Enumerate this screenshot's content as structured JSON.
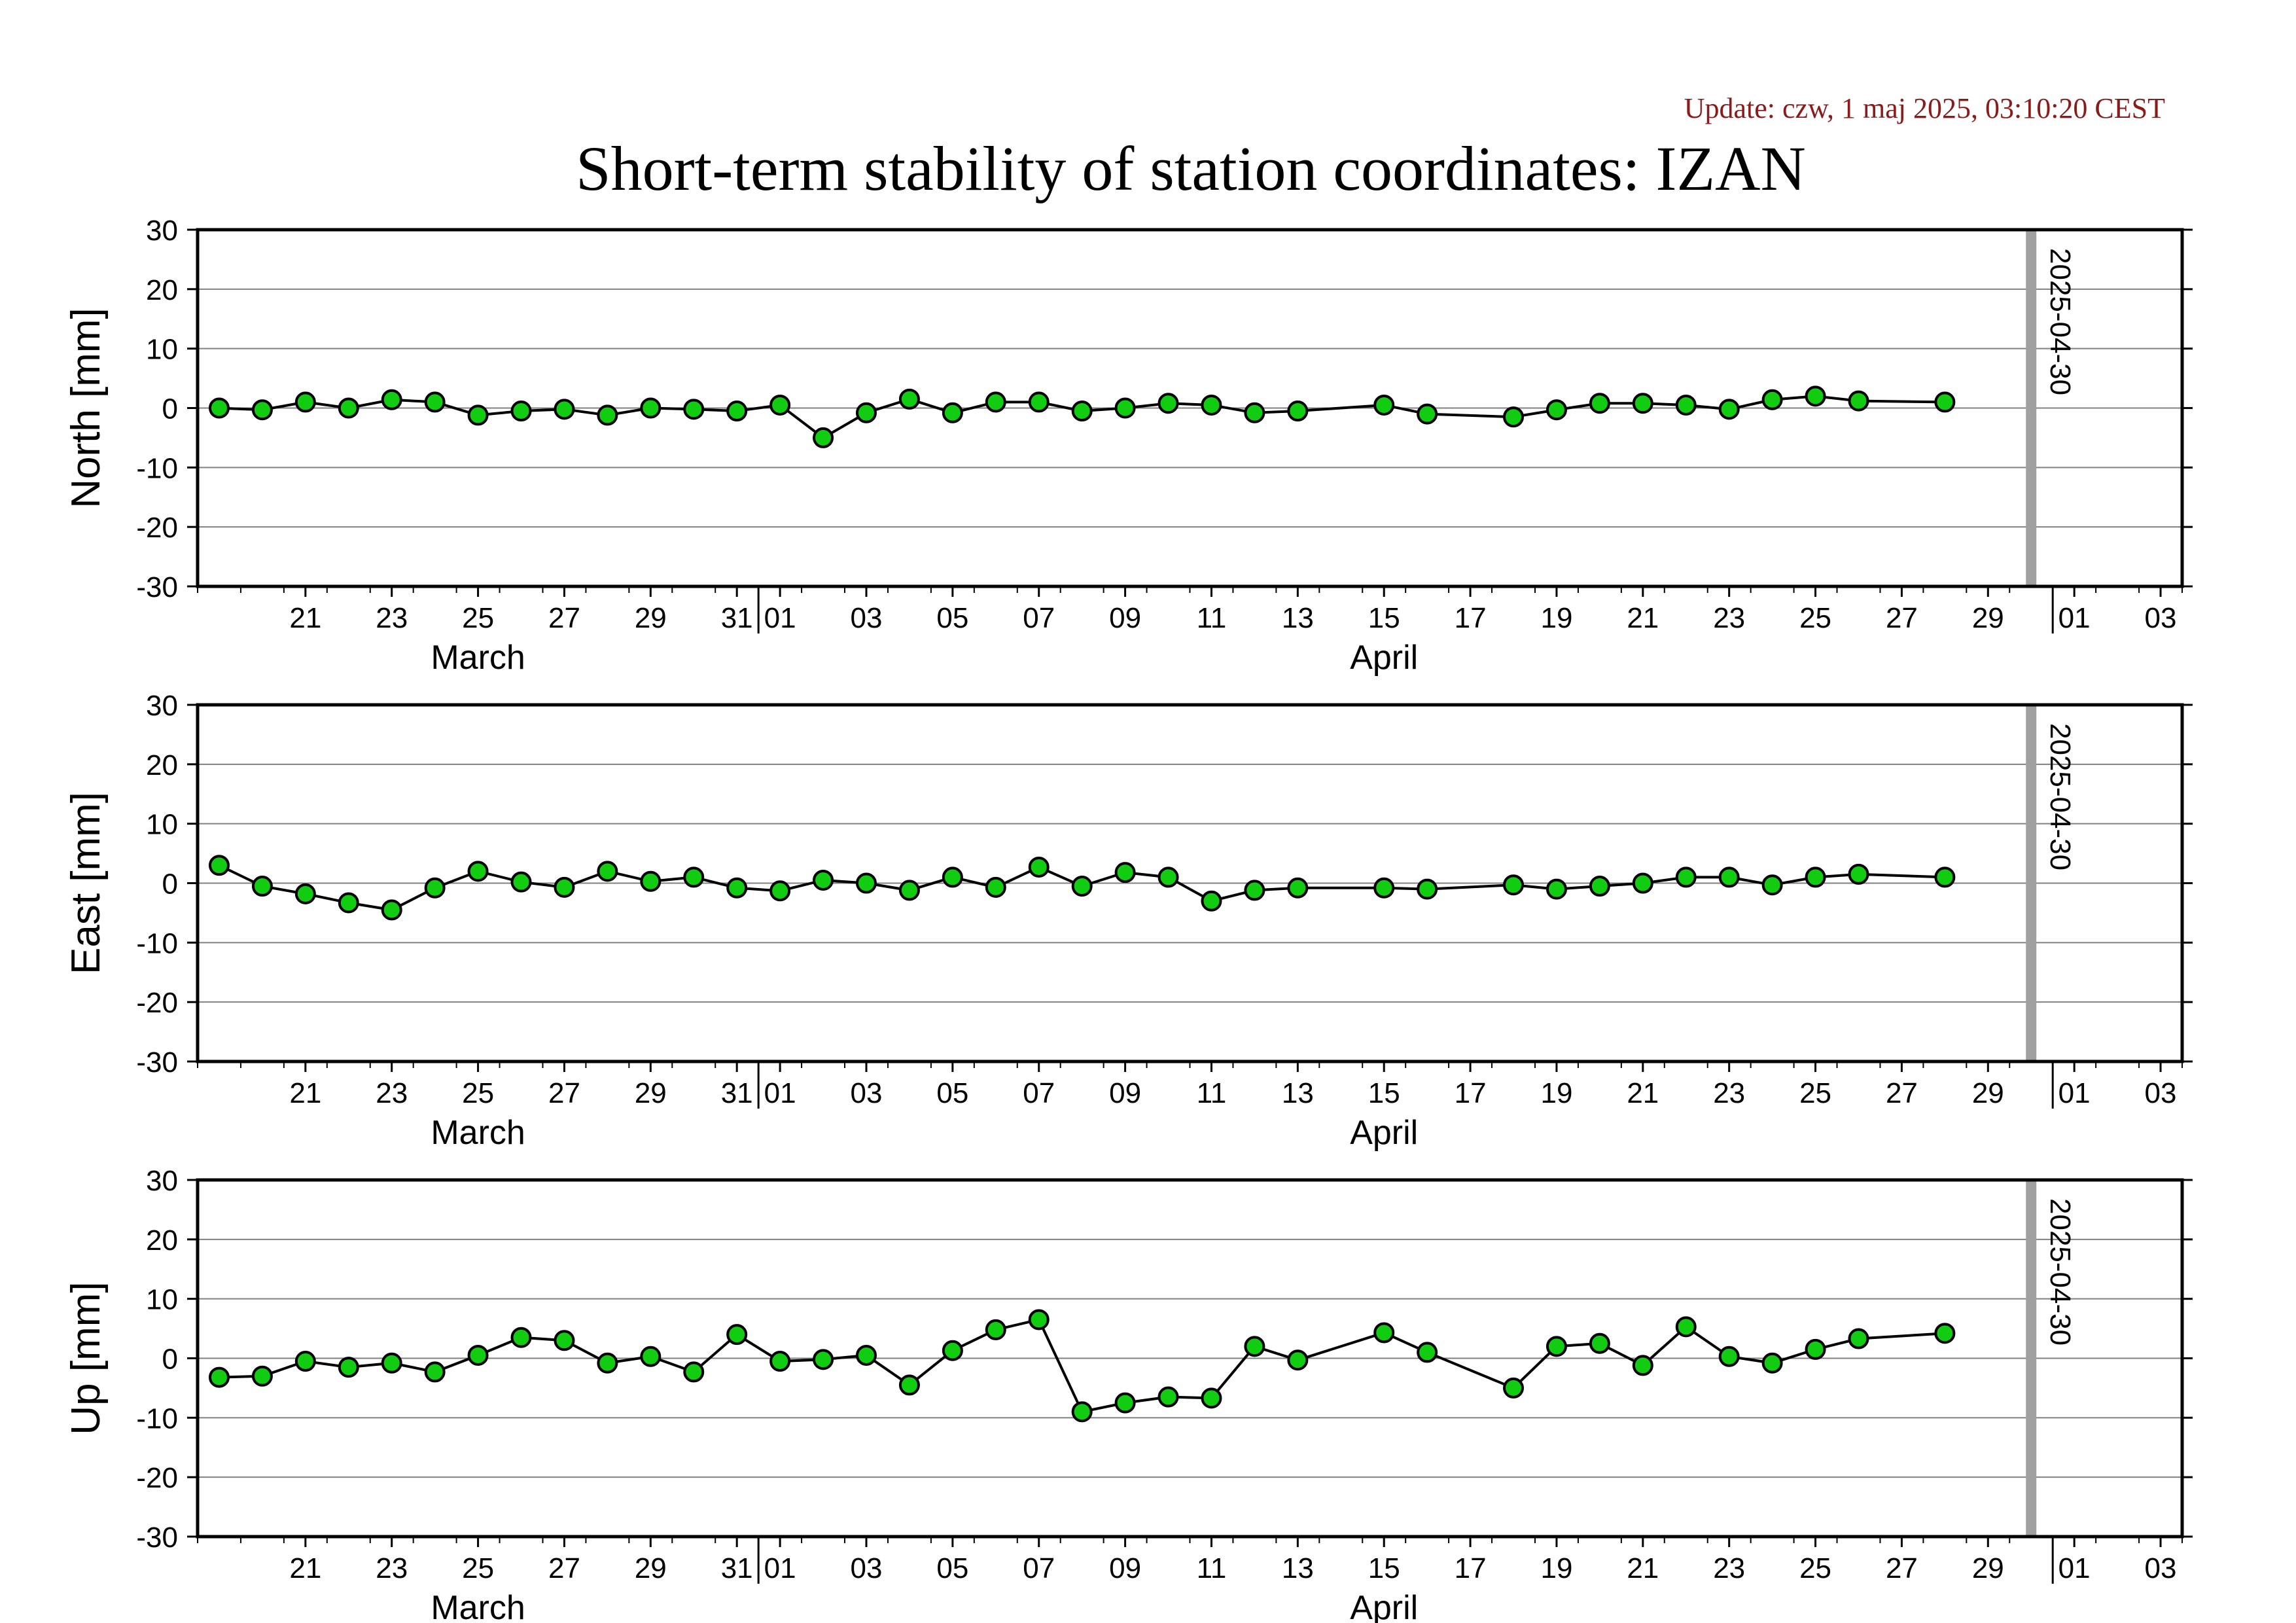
{
  "update_text": "Update: czw, 1 maj 2025, 03:10:20 CEST",
  "title": "Short-term stability of station coordinates: IZAN",
  "colors": {
    "marker_fill": "#11cc11",
    "marker_edge": "#000000",
    "line": "#000000",
    "gridline": "#808080",
    "marker_line_current_date": "#a0a0a0",
    "update": "#8b1a1a"
  },
  "chart_data": [
    {
      "type": "line",
      "ylabel": "North [mm]",
      "ylim": [
        -30,
        30
      ],
      "yticks": [
        30,
        20,
        10,
        0,
        -10,
        -20,
        -30
      ],
      "x_range": [
        "2025-03-19",
        "2025-05-04"
      ],
      "xtick_labels": [
        "21",
        "23",
        "25",
        "27",
        "29",
        "31",
        "01",
        "03",
        "05",
        "07",
        "09",
        "11",
        "13",
        "15",
        "17",
        "19",
        "21",
        "23",
        "25",
        "27",
        "29",
        "01",
        "03"
      ],
      "xtick_dates": [
        "2025-03-21",
        "2025-03-23",
        "2025-03-25",
        "2025-03-27",
        "2025-03-29",
        "2025-03-31",
        "2025-04-01",
        "2025-04-03",
        "2025-04-05",
        "2025-04-07",
        "2025-04-09",
        "2025-04-11",
        "2025-04-13",
        "2025-04-15",
        "2025-04-17",
        "2025-04-19",
        "2025-04-21",
        "2025-04-23",
        "2025-04-25",
        "2025-04-27",
        "2025-04-29",
        "2025-05-01",
        "2025-05-03"
      ],
      "month_labels": [
        {
          "label": "March",
          "date": "2025-03-25"
        },
        {
          "label": "April",
          "date": "2025-04-15"
        }
      ],
      "month_boundaries": [
        "2025-04-01",
        "2025-05-01"
      ],
      "marker_line": {
        "date": "2025-04-30",
        "label": "2025-04-30"
      },
      "grid": true,
      "series": [
        {
          "x": [
            "2025-03-19",
            "2025-03-20",
            "2025-03-21",
            "2025-03-22",
            "2025-03-23",
            "2025-03-24",
            "2025-03-25",
            "2025-03-26",
            "2025-03-27",
            "2025-03-28",
            "2025-03-29",
            "2025-03-30",
            "2025-03-31",
            "2025-04-01",
            "2025-04-02",
            "2025-04-03",
            "2025-04-04",
            "2025-04-05",
            "2025-04-06",
            "2025-04-07",
            "2025-04-08",
            "2025-04-09",
            "2025-04-10",
            "2025-04-11",
            "2025-04-12",
            "2025-04-13",
            "2025-04-15",
            "2025-04-16",
            "2025-04-18",
            "2025-04-19",
            "2025-04-20",
            "2025-04-21",
            "2025-04-22",
            "2025-04-23",
            "2025-04-24",
            "2025-04-25",
            "2025-04-26",
            "2025-04-28"
          ],
          "y": [
            0.0,
            -0.3,
            1.0,
            0.0,
            1.4,
            1.0,
            -1.2,
            -0.5,
            -0.2,
            -1.2,
            0.0,
            -0.2,
            -0.5,
            0.5,
            -5.0,
            -0.8,
            1.5,
            -0.8,
            1.0,
            1.0,
            -0.5,
            0.0,
            0.8,
            0.5,
            -0.8,
            -0.5,
            0.5,
            -1.0,
            -1.5,
            -0.3,
            0.8,
            0.8,
            0.5,
            -0.2,
            1.4,
            2.0,
            1.2,
            1.0
          ]
        }
      ]
    },
    {
      "type": "line",
      "ylabel": "East [mm]",
      "ylim": [
        -30,
        30
      ],
      "yticks": [
        30,
        20,
        10,
        0,
        -10,
        -20,
        -30
      ],
      "x_range": [
        "2025-03-19",
        "2025-05-04"
      ],
      "xtick_labels": [
        "21",
        "23",
        "25",
        "27",
        "29",
        "31",
        "01",
        "03",
        "05",
        "07",
        "09",
        "11",
        "13",
        "15",
        "17",
        "19",
        "21",
        "23",
        "25",
        "27",
        "29",
        "01",
        "03"
      ],
      "xtick_dates": [
        "2025-03-21",
        "2025-03-23",
        "2025-03-25",
        "2025-03-27",
        "2025-03-29",
        "2025-03-31",
        "2025-04-01",
        "2025-04-03",
        "2025-04-05",
        "2025-04-07",
        "2025-04-09",
        "2025-04-11",
        "2025-04-13",
        "2025-04-15",
        "2025-04-17",
        "2025-04-19",
        "2025-04-21",
        "2025-04-23",
        "2025-04-25",
        "2025-04-27",
        "2025-04-29",
        "2025-05-01",
        "2025-05-03"
      ],
      "month_labels": [
        {
          "label": "March",
          "date": "2025-03-25"
        },
        {
          "label": "April",
          "date": "2025-04-15"
        }
      ],
      "month_boundaries": [
        "2025-04-01",
        "2025-05-01"
      ],
      "marker_line": {
        "date": "2025-04-30",
        "label": "2025-04-30"
      },
      "grid": true,
      "series": [
        {
          "x": [
            "2025-03-19",
            "2025-03-20",
            "2025-03-21",
            "2025-03-22",
            "2025-03-23",
            "2025-03-24",
            "2025-03-25",
            "2025-03-26",
            "2025-03-27",
            "2025-03-28",
            "2025-03-29",
            "2025-03-30",
            "2025-03-31",
            "2025-04-01",
            "2025-04-02",
            "2025-04-03",
            "2025-04-04",
            "2025-04-05",
            "2025-04-06",
            "2025-04-07",
            "2025-04-08",
            "2025-04-09",
            "2025-04-10",
            "2025-04-11",
            "2025-04-12",
            "2025-04-13",
            "2025-04-15",
            "2025-04-16",
            "2025-04-18",
            "2025-04-19",
            "2025-04-20",
            "2025-04-21",
            "2025-04-22",
            "2025-04-23",
            "2025-04-24",
            "2025-04-25",
            "2025-04-26",
            "2025-04-28"
          ],
          "y": [
            3.0,
            -0.5,
            -1.8,
            -3.3,
            -4.5,
            -0.8,
            2.0,
            0.2,
            -0.7,
            2.0,
            0.3,
            1.0,
            -0.8,
            -1.3,
            0.5,
            0.0,
            -1.2,
            1.0,
            -0.7,
            2.7,
            -0.5,
            1.8,
            1.0,
            -3.0,
            -1.2,
            -0.8,
            -0.8,
            -1.0,
            -0.3,
            -1.0,
            -0.5,
            0.0,
            1.0,
            1.0,
            -0.3,
            1.0,
            1.5,
            1.0
          ]
        }
      ]
    },
    {
      "type": "line",
      "ylabel": "Up [mm]",
      "ylim": [
        -30,
        30
      ],
      "yticks": [
        30,
        20,
        10,
        0,
        -10,
        -20,
        -30
      ],
      "x_range": [
        "2025-03-19",
        "2025-05-04"
      ],
      "xtick_labels": [
        "21",
        "23",
        "25",
        "27",
        "29",
        "31",
        "01",
        "03",
        "05",
        "07",
        "09",
        "11",
        "13",
        "15",
        "17",
        "19",
        "21",
        "23",
        "25",
        "27",
        "29",
        "01",
        "03"
      ],
      "xtick_dates": [
        "2025-03-21",
        "2025-03-23",
        "2025-03-25",
        "2025-03-27",
        "2025-03-29",
        "2025-03-31",
        "2025-04-01",
        "2025-04-03",
        "2025-04-05",
        "2025-04-07",
        "2025-04-09",
        "2025-04-11",
        "2025-04-13",
        "2025-04-15",
        "2025-04-17",
        "2025-04-19",
        "2025-04-21",
        "2025-04-23",
        "2025-04-25",
        "2025-04-27",
        "2025-04-29",
        "2025-05-01",
        "2025-05-03"
      ],
      "month_labels": [
        {
          "label": "March",
          "date": "2025-03-25"
        },
        {
          "label": "April",
          "date": "2025-04-15"
        }
      ],
      "month_boundaries": [
        "2025-04-01",
        "2025-05-01"
      ],
      "marker_line": {
        "date": "2025-04-30",
        "label": "2025-04-30"
      },
      "grid": true,
      "series": [
        {
          "x": [
            "2025-03-19",
            "2025-03-20",
            "2025-03-21",
            "2025-03-22",
            "2025-03-23",
            "2025-03-24",
            "2025-03-25",
            "2025-03-26",
            "2025-03-27",
            "2025-03-28",
            "2025-03-29",
            "2025-03-30",
            "2025-03-31",
            "2025-04-01",
            "2025-04-02",
            "2025-04-03",
            "2025-04-04",
            "2025-04-05",
            "2025-04-06",
            "2025-04-07",
            "2025-04-08",
            "2025-04-09",
            "2025-04-10",
            "2025-04-11",
            "2025-04-12",
            "2025-04-13",
            "2025-04-15",
            "2025-04-16",
            "2025-04-18",
            "2025-04-19",
            "2025-04-20",
            "2025-04-21",
            "2025-04-22",
            "2025-04-23",
            "2025-04-24",
            "2025-04-25",
            "2025-04-26",
            "2025-04-28"
          ],
          "y": [
            -3.2,
            -3.0,
            -0.5,
            -1.5,
            -0.8,
            -2.3,
            0.5,
            3.5,
            3.0,
            -0.8,
            0.3,
            -2.3,
            4.0,
            -0.5,
            -0.2,
            0.5,
            -4.5,
            1.3,
            4.8,
            6.5,
            -9.0,
            -7.5,
            -6.5,
            -6.7,
            2.0,
            -0.3,
            4.3,
            1.0,
            -5.0,
            2.0,
            2.5,
            -1.2,
            5.3,
            0.3,
            -0.8,
            1.5,
            3.3,
            4.2
          ]
        }
      ]
    }
  ]
}
